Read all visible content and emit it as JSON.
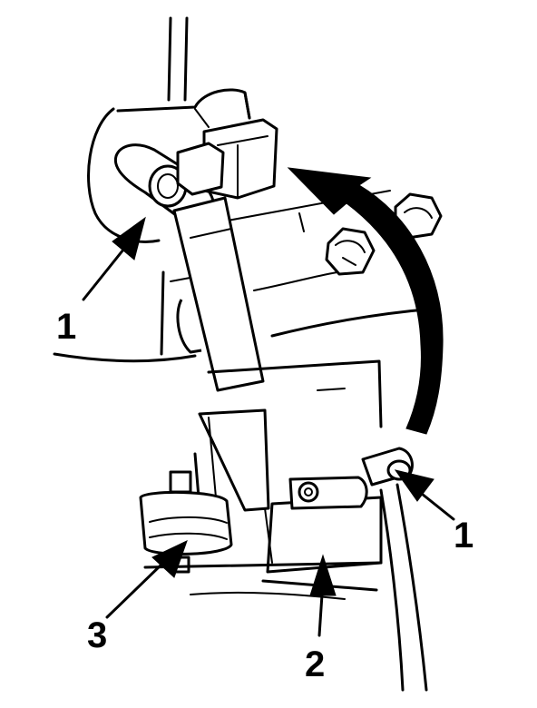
{
  "callouts": [
    {
      "id": "upper-left",
      "label": "1"
    },
    {
      "id": "right",
      "label": "1"
    },
    {
      "id": "lower-left",
      "label": "3"
    },
    {
      "id": "bottom",
      "label": "2"
    }
  ],
  "colors": {
    "ink": "#000000",
    "background": "#ffffff"
  }
}
